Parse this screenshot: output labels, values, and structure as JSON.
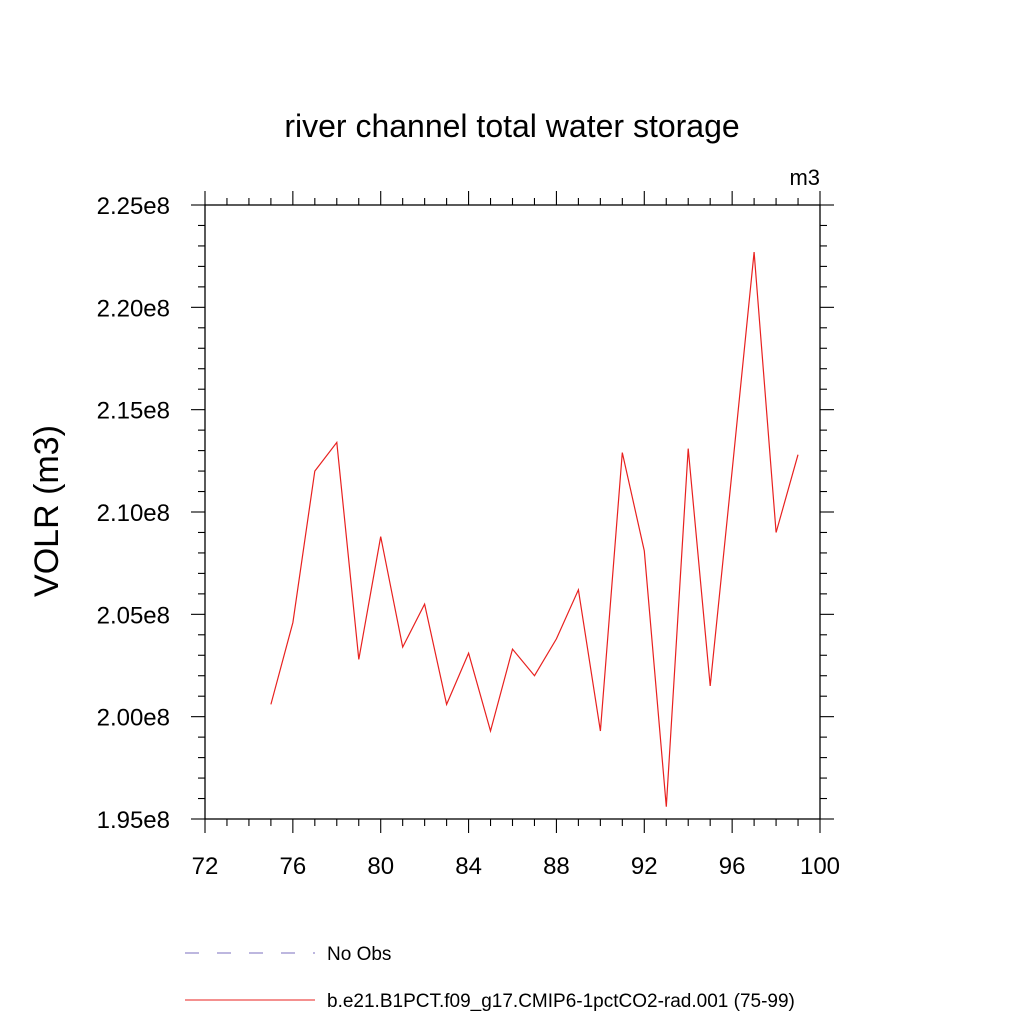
{
  "chart_data": {
    "type": "line",
    "title": "river channel total water storage",
    "units": "m3",
    "ylabel": "VOLR  (m3)",
    "xlabel": "",
    "xlim": [
      72,
      100
    ],
    "ylim": [
      195000000,
      225000000
    ],
    "x_ticks": [
      72,
      76,
      80,
      84,
      88,
      92,
      96,
      100
    ],
    "x_tick_labels": [
      "72",
      "76",
      "80",
      "84",
      "88",
      "92",
      "96",
      "100"
    ],
    "y_ticks": [
      195000000,
      200000000,
      205000000,
      210000000,
      215000000,
      220000000,
      225000000
    ],
    "y_tick_labels": [
      "1.95e8",
      "2.00e8",
      "2.05e8",
      "2.10e8",
      "2.15e8",
      "2.20e8",
      "2.25e8"
    ],
    "grid": false,
    "legend_placement": "bottom",
    "series": [
      {
        "name": "b.e21.B1PCT.f09_g17.CMIP6-1pctCO2-rad.001 (75-99)",
        "color": "#e8211f",
        "style": "solid",
        "x": [
          75,
          76,
          77,
          78,
          79,
          80,
          81,
          82,
          83,
          84,
          85,
          86,
          87,
          88,
          89,
          90,
          91,
          92,
          93,
          94,
          95,
          96,
          97,
          98,
          99
        ],
        "y": [
          200600000,
          204600000,
          212000000,
          213400000,
          202800000,
          208800000,
          203400000,
          205500000,
          200600000,
          203100000,
          199300000,
          203300000,
          202000000,
          203800000,
          206200000,
          199300000,
          212900000,
          208100000,
          195600000,
          213100000,
          201500000,
          212000000,
          222700000,
          209000000,
          212800000
        ]
      }
    ],
    "legend": [
      {
        "label": "No Obs",
        "color": "#7b6fbf",
        "style": "dashed"
      },
      {
        "label": "b.e21.B1PCT.f09_g17.CMIP6-1pctCO2-rad.001 (75-99)",
        "color": "#e8211f",
        "style": "solid"
      }
    ]
  }
}
